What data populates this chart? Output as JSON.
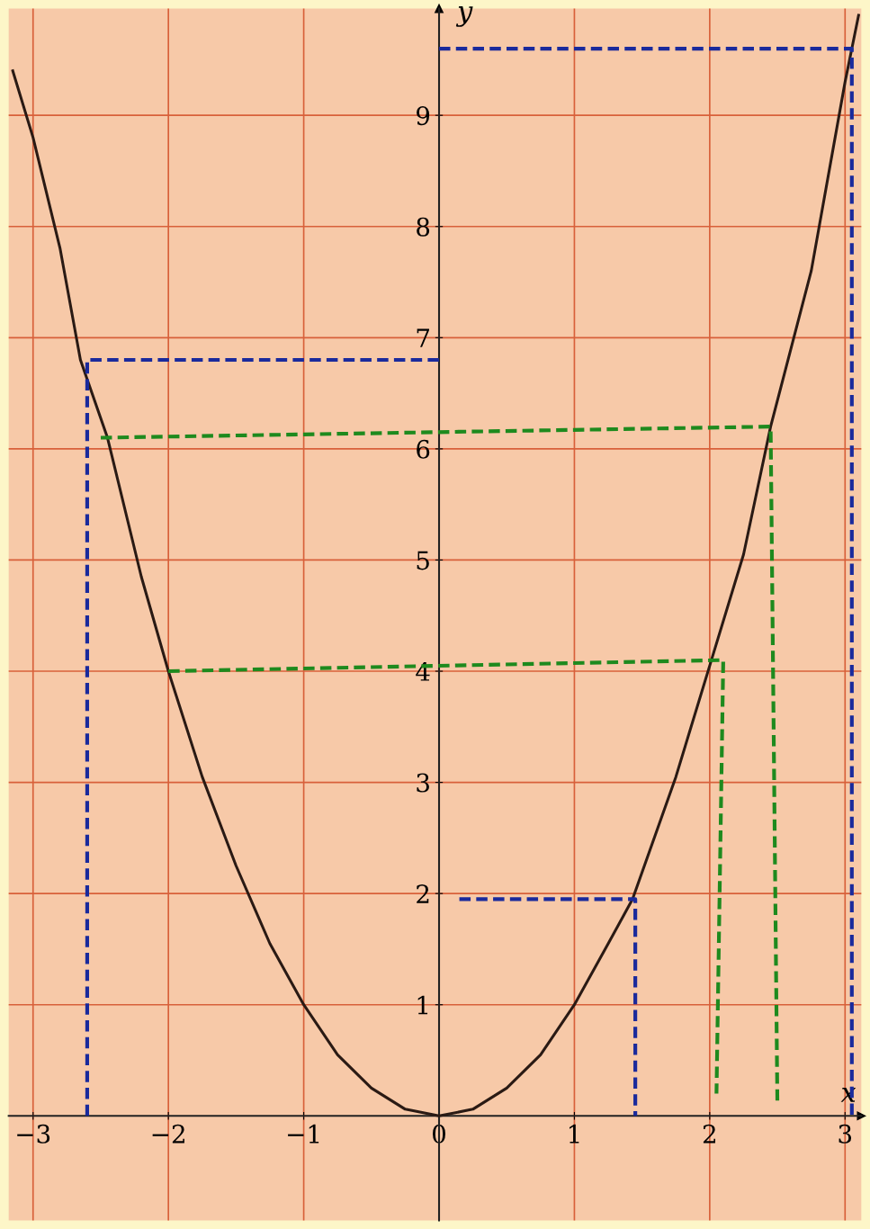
{
  "chart_data": {
    "type": "line",
    "xlabel": "x",
    "ylabel": "y",
    "xlim": [
      -3.18,
      3.12
    ],
    "ylim": [
      -0.94,
      9.96
    ],
    "xticks": [
      -3,
      -2,
      -1,
      0,
      1,
      2,
      3
    ],
    "yticks": [
      1,
      2,
      3,
      4,
      5,
      6,
      7,
      8,
      9
    ],
    "grid": true,
    "marker": "none",
    "series": [
      {
        "color": "#2a1a14",
        "line_style": "solid",
        "x": [
          -3.15,
          -3.0,
          -2.8,
          -2.65,
          -2.45,
          -2.2,
          -2.0,
          -1.75,
          -1.5,
          -1.25,
          -1.0,
          -0.75,
          -0.5,
          -0.25,
          0,
          0.25,
          0.5,
          0.75,
          1.0,
          1.25,
          1.43,
          1.75,
          2.0,
          2.25,
          2.45,
          2.75,
          3.0,
          3.1
        ],
        "values": [
          9.4,
          8.8,
          7.8,
          6.8,
          6.1,
          4.85,
          4.0,
          3.05,
          2.25,
          1.55,
          1.0,
          0.55,
          0.25,
          0.06,
          0,
          0.06,
          0.25,
          0.55,
          1.0,
          1.55,
          1.95,
          3.05,
          4.05,
          5.05,
          6.2,
          7.6,
          9.3,
          9.9
        ]
      },
      {
        "color": "#1a2a9c",
        "line_style": "dashed",
        "x": [
          -2.6,
          -2.6,
          0
        ],
        "values": [
          0,
          6.8,
          6.8
        ]
      },
      {
        "color": "#1a2a9c",
        "line_style": "dashed",
        "x": [
          0,
          3.05,
          3.05
        ],
        "values": [
          9.6,
          9.6,
          0
        ]
      },
      {
        "color": "#1a2a9c",
        "line_style": "dashed",
        "x": [
          0.15,
          1.45,
          1.45
        ],
        "values": [
          1.95,
          1.95,
          0
        ]
      },
      {
        "color": "#1e8a1e",
        "line_style": "dashed",
        "x": [
          -2.5,
          2.45,
          2.5
        ],
        "values": [
          6.1,
          6.2,
          0.1
        ]
      },
      {
        "color": "#1e8a1e",
        "line_style": "dashed",
        "x": [
          -2.0,
          2.1,
          2.05
        ],
        "values": [
          4.0,
          4.1,
          0.2
        ]
      }
    ]
  }
}
